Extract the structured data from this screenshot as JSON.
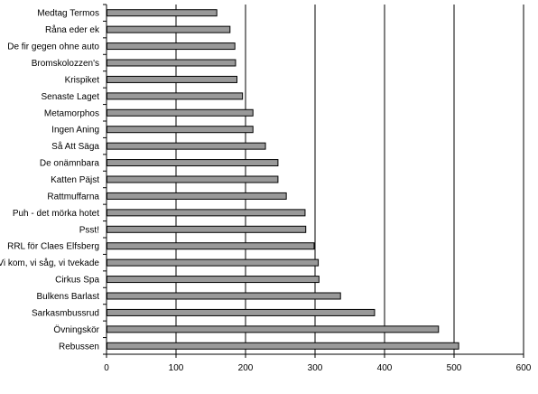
{
  "chart_data": {
    "type": "bar",
    "orientation": "horizontal",
    "title": "",
    "xlabel": "",
    "ylabel": "",
    "categories": [
      "Medtag Termos",
      "Råna eder ek",
      "De fir gegen ohne auto",
      "Bromskolozzen's",
      "Krispiket",
      "Senaste Laget",
      "Metamorphos",
      "Ingen Aning",
      "Så Att Säga",
      "De onämnbara",
      "Katten Päjst",
      "Rattmuffarna",
      "Puh - det mörka hotet",
      "Psst!",
      "RRL för Claes Elfsberg",
      "Vi kom, vi såg, vi tvekade",
      "Cirkus Spa",
      "Bulkens Barlast",
      "Sarkasmbussrud",
      "Övningskör",
      "Rebussen"
    ],
    "values": [
      158,
      177,
      184,
      185,
      187,
      195,
      210,
      210,
      228,
      246,
      246,
      258,
      285,
      286,
      298,
      304,
      305,
      336,
      385,
      477,
      506
    ],
    "xlim": [
      0,
      600
    ],
    "xticks": [
      0,
      100,
      200,
      300,
      400,
      500,
      600
    ],
    "grid": true,
    "legend": "none",
    "bar_color": "#999999",
    "bar_edge_color": "#000000"
  }
}
